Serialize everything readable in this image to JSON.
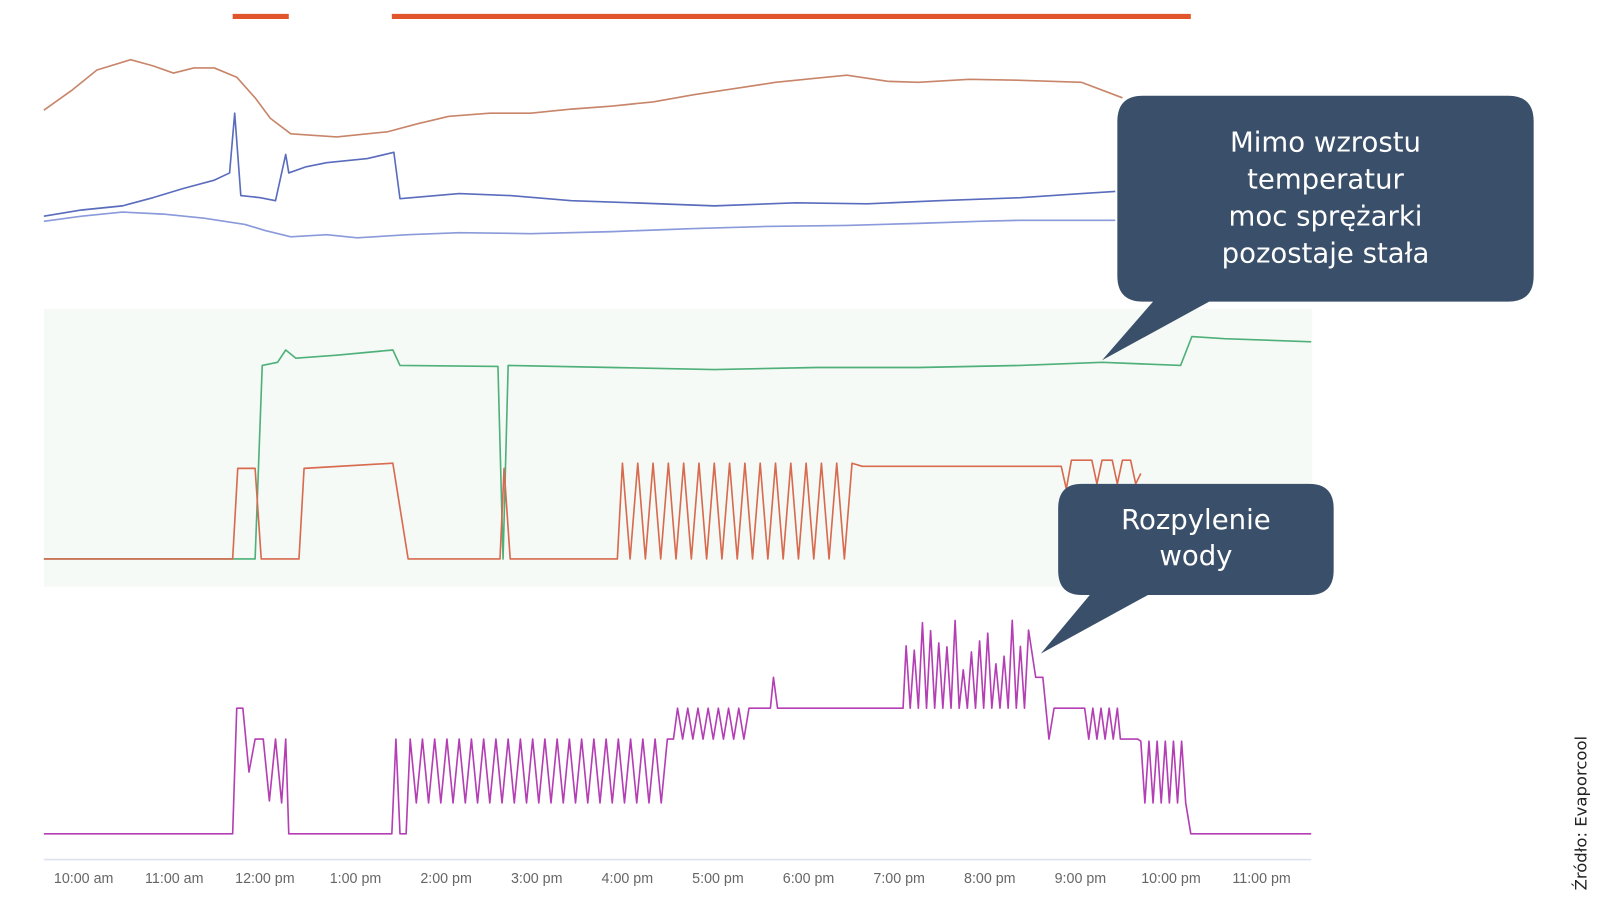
{
  "x_axis": {
    "labels": [
      "10:00 am",
      "11:00 am",
      "12:00 pm",
      "1:00 pm",
      "2:00 pm",
      "3:00 pm",
      "4:00 pm",
      "5:00 pm",
      "6:00 pm",
      "7:00 pm",
      "8:00 pm",
      "9:00 pm",
      "10:00 pm",
      "11:00 pm"
    ]
  },
  "callouts": [
    {
      "lines": [
        "Mimo wzrostu",
        "temperatur",
        "moc sprężarki",
        "pozostaje stała"
      ]
    },
    {
      "lines": [
        "Rozpylenie",
        "wody"
      ]
    }
  ],
  "source": "Źródło: Evaporcool"
}
